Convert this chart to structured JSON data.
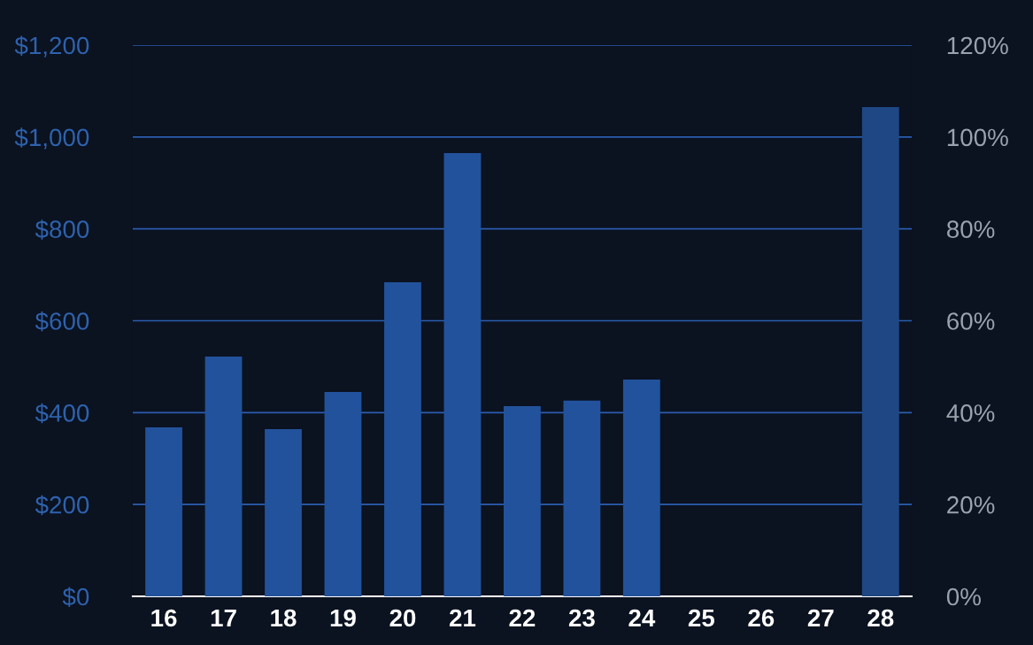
{
  "chart_data": {
    "type": "bar",
    "categories": [
      "16",
      "17",
      "18",
      "19",
      "20",
      "21",
      "22",
      "23",
      "24",
      "25",
      "26",
      "27",
      "28"
    ],
    "values": [
      368,
      522,
      364,
      445,
      684,
      965,
      414,
      426,
      472,
      null,
      null,
      null,
      1065
    ],
    "colors": [
      "#22529b",
      "#22529b",
      "#22529b",
      "#22529b",
      "#22529b",
      "#22529b",
      "#22529b",
      "#22529b",
      "#22529b",
      "#22529b",
      "#22529b",
      "#22529b",
      "#1e4784"
    ],
    "ylim": [
      0,
      1200
    ],
    "yticks": [
      {
        "value": 0,
        "label": "$0"
      },
      {
        "value": 200,
        "label": "$200"
      },
      {
        "value": 400,
        "label": "$400"
      },
      {
        "value": 600,
        "label": "$600"
      },
      {
        "value": 800,
        "label": "$800"
      },
      {
        "value": 1000,
        "label": "$1,000"
      },
      {
        "value": 1200,
        "label": "$1,200"
      }
    ],
    "y2lim": [
      0,
      120
    ],
    "y2ticks": [
      {
        "value": 0,
        "label": "0%"
      },
      {
        "value": 20,
        "label": "20%"
      },
      {
        "value": 40,
        "label": "40%"
      },
      {
        "value": 60,
        "label": "60%"
      },
      {
        "value": 80,
        "label": "80%"
      },
      {
        "value": 100,
        "label": "100%"
      },
      {
        "value": 120,
        "label": "120%"
      }
    ],
    "grid": "y"
  }
}
